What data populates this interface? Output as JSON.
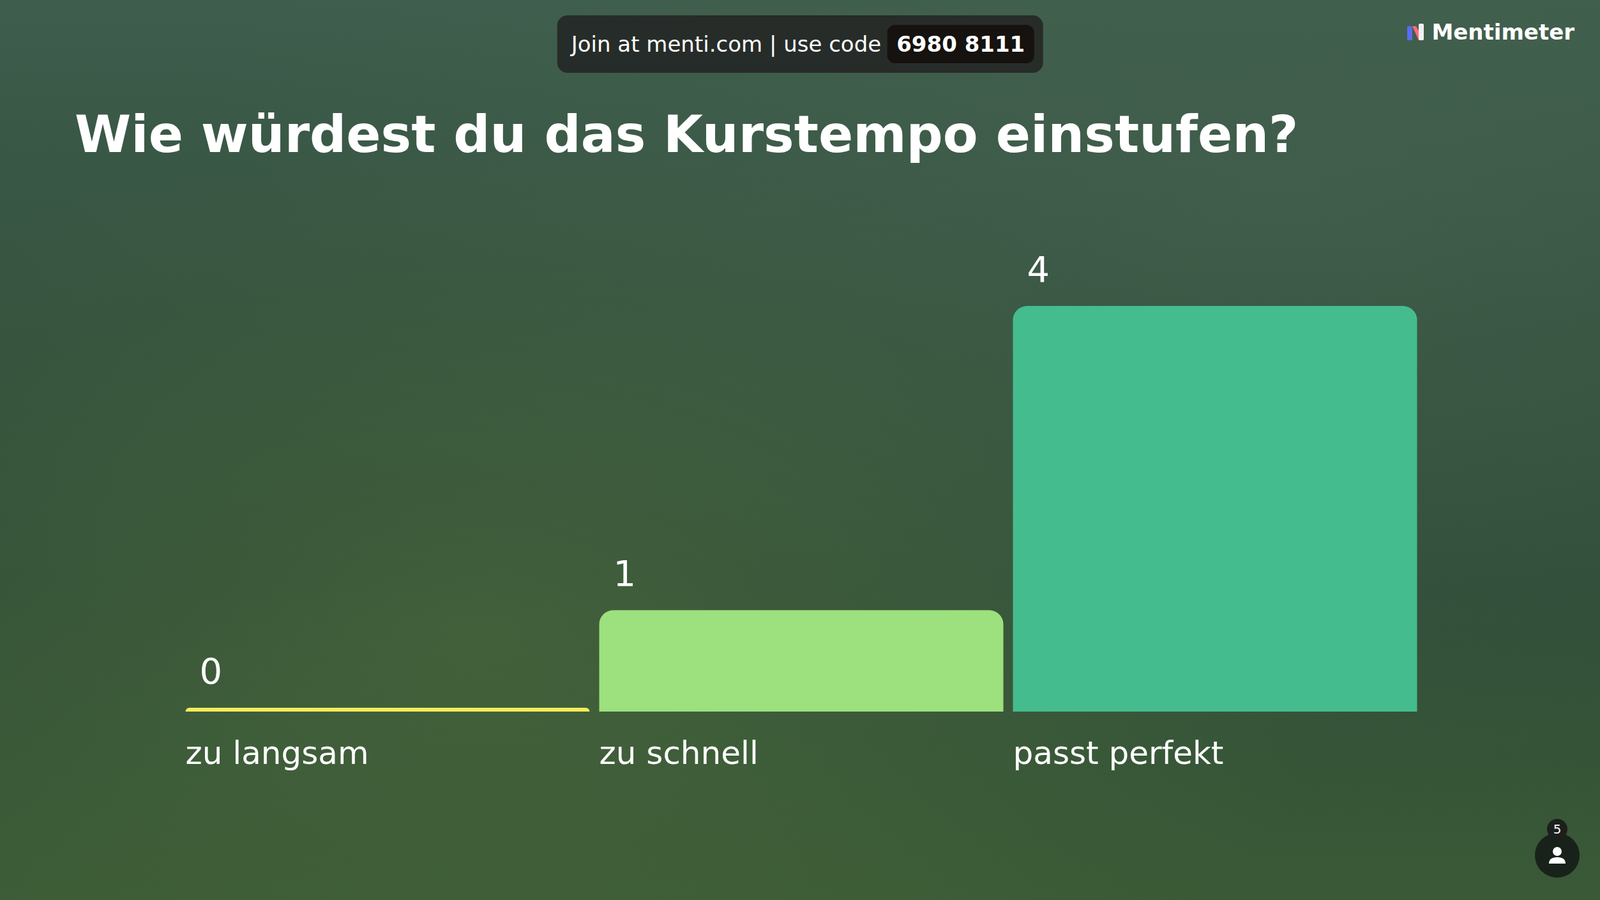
{
  "header": {
    "join_text": "Join at menti.com | use code",
    "code": "6980 8111",
    "brand": "Mentimeter"
  },
  "participants": 5,
  "chart_data": {
    "type": "bar",
    "title": "Wie würdest du das Kurstempo einstufen?",
    "categories": [
      "zu langsam",
      "zu schnell",
      "passt perfekt"
    ],
    "values": [
      0,
      1,
      4
    ],
    "colors": [
      "#f4ec5c",
      "#9de07e",
      "#45bc8e"
    ],
    "ylim": [
      0,
      4
    ],
    "yticks": [
      0,
      4
    ],
    "grid": false,
    "data_labels": true,
    "tick_labels": "x"
  }
}
